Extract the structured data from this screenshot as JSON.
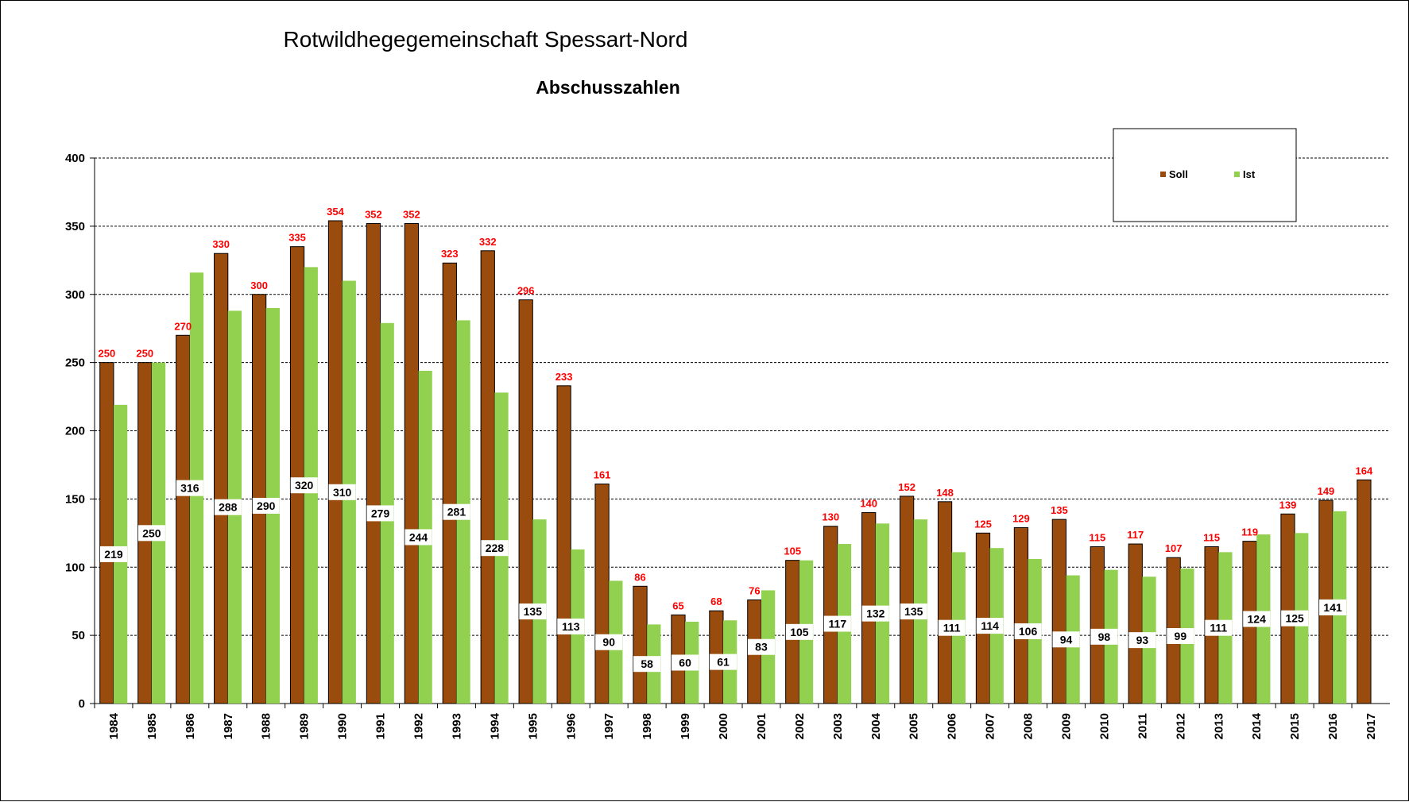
{
  "chart_data": {
    "type": "bar",
    "title": "Rotwildhegegemeinschaft Spessart-Nord",
    "subtitle": "Abschusszahlen",
    "xlabel": "",
    "ylabel": "",
    "ylim": [
      0,
      400
    ],
    "yticks": [
      "0",
      "50",
      "100",
      "150",
      "200",
      "250",
      "300",
      "350",
      "400"
    ],
    "grid": true,
    "legend_position": "top-right",
    "categories": [
      "1984",
      "1985",
      "1986",
      "1987",
      "1988",
      "1989",
      "1990",
      "1991",
      "1992",
      "1993",
      "1994",
      "1995",
      "1996",
      "1997",
      "1998",
      "1999",
      "2000",
      "2001",
      "2002",
      "2003",
      "2004",
      "2005",
      "2006",
      "2007",
      "2008",
      "2009",
      "2010",
      "2011",
      "2012",
      "2013",
      "2014",
      "2015",
      "2016",
      "2017"
    ],
    "series": [
      {
        "name": "Soll",
        "color": "#994c0d",
        "values": [
          250,
          250,
          270,
          330,
          300,
          335,
          354,
          352,
          352,
          323,
          332,
          296,
          233,
          161,
          86,
          65,
          68,
          76,
          105,
          130,
          140,
          152,
          148,
          125,
          129,
          135,
          115,
          117,
          107,
          115,
          119,
          139,
          149,
          164
        ]
      },
      {
        "name": "Ist",
        "color": "#92d050",
        "values": [
          219,
          250,
          316,
          288,
          290,
          320,
          310,
          279,
          244,
          281,
          228,
          135,
          113,
          90,
          58,
          60,
          61,
          83,
          105,
          117,
          132,
          135,
          111,
          114,
          106,
          94,
          98,
          93,
          99,
          111,
          124,
          125,
          141,
          null
        ]
      }
    ],
    "soll_label_color": "#ff0000"
  }
}
